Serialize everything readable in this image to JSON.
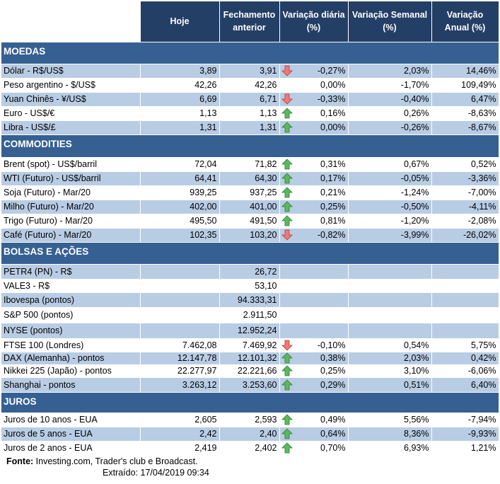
{
  "header": {
    "hoje": "Hoje",
    "fechamento": "Fechamento anterior",
    "var_diaria": "Variação diária (%)",
    "var_semanal": "Variação Semanal (%)",
    "var_anual": "Variação Anual (%)"
  },
  "colors": {
    "header": "#243f66",
    "section": "#366092",
    "stripe": "#b8cce4",
    "up": "#4ea84e",
    "down": "#e06666"
  },
  "sections": [
    {
      "title": "MOEDAS",
      "rows": [
        {
          "label": "Dólar - R$/US$",
          "hoje": "3,89",
          "fech": "3,91",
          "arrow": "down",
          "d": "-0,27%",
          "s": "2,03%",
          "a": "14,46%"
        },
        {
          "label": "Peso argentino - $/US$",
          "hoje": "42,26",
          "fech": "42,26",
          "arrow": "",
          "d": "0,00%",
          "s": "-1,70%",
          "a": "109,49%"
        },
        {
          "label": "Yuan Chinês - ¥/US$",
          "hoje": "6,69",
          "fech": "6,71",
          "arrow": "down",
          "d": "-0,33%",
          "s": "-0,40%",
          "a": "6,47%"
        },
        {
          "label": "Euro - US$/€",
          "hoje": "1,13",
          "fech": "1,13",
          "arrow": "up",
          "d": "0,16%",
          "s": "0,26%",
          "a": "-8,63%"
        },
        {
          "label": "Libra - US$/£",
          "hoje": "1,31",
          "fech": "1,31",
          "arrow": "up",
          "d": "0,00%",
          "s": "-0,26%",
          "a": "-8,67%"
        }
      ]
    },
    {
      "title": "COMMODITIES",
      "rows": [
        {
          "label": "Brent (spot) - US$/barril",
          "hoje": "72,04",
          "fech": "71,82",
          "arrow": "up",
          "d": "0,31%",
          "s": "0,67%",
          "a": "0,52%"
        },
        {
          "label": "WTI (Futuro) - US$/barril",
          "hoje": "64,41",
          "fech": "64,30",
          "arrow": "up",
          "d": "0,17%",
          "s": "-0,05%",
          "a": "-3,36%"
        },
        {
          "label": "Soja (Futuro) - Mar/20",
          "hoje": "939,25",
          "fech": "937,25",
          "arrow": "up",
          "d": "0,21%",
          "s": "-1,24%",
          "a": "-7,00%"
        },
        {
          "label": "Milho (Futuro) - Mar/20",
          "hoje": "402,00",
          "fech": "401,00",
          "arrow": "up",
          "d": "0,25%",
          "s": "-0,50%",
          "a": "-4,11%"
        },
        {
          "label": "Trigo (Futuro) - Mar/20",
          "hoje": "495,50",
          "fech": "491,50",
          "arrow": "up",
          "d": "0,81%",
          "s": "-1,20%",
          "a": "-2,08%"
        },
        {
          "label": "Café (Futuro) - Mar/20",
          "hoje": "102,35",
          "fech": "103,20",
          "arrow": "down",
          "d": "-0,82%",
          "s": "-3,99%",
          "a": "-26,02%"
        }
      ]
    },
    {
      "title": "BOLSAS E AÇÕES",
      "rows": [
        {
          "label": "PETR4 (PN) - R$",
          "hoje": "",
          "fech": "26,72",
          "arrow": "",
          "d": "",
          "s": "",
          "a": ""
        },
        {
          "label": "VALE3 - R$",
          "hoje": "",
          "fech": "53,10",
          "arrow": "",
          "d": "",
          "s": "",
          "a": ""
        },
        {
          "label": "Ibovespa (pontos)",
          "hoje": "",
          "fech": "94.333,31",
          "arrow": "",
          "d": "",
          "s": "",
          "a": ""
        },
        {
          "label": "S&P 500 (pontos)",
          "hoje": "",
          "fech": "2.911,50",
          "arrow": "",
          "d": "",
          "s": "",
          "a": ""
        },
        {
          "label": "NYSE (pontos)",
          "hoje": "",
          "fech": "12.952,24",
          "arrow": "",
          "d": "",
          "s": "",
          "a": ""
        },
        {
          "label": "FTSE 100 (Londres)",
          "hoje": "7.462,08",
          "fech": "7.469,92",
          "arrow": "down",
          "d": "-0,10%",
          "s": "0,54%",
          "a": "5,75%"
        },
        {
          "label": "DAX (Alemanha) - pontos",
          "hoje": "12.147,78",
          "fech": "12.101,32",
          "arrow": "up",
          "d": "0,38%",
          "s": "2,03%",
          "a": "0,42%"
        },
        {
          "label": "Nikkei 225 (Japão) - pontos",
          "hoje": "22.277,97",
          "fech": "22.221,66",
          "arrow": "up",
          "d": "0,25%",
          "s": "3,10%",
          "a": "-6,06%"
        },
        {
          "label": "Shanghai - pontos",
          "hoje": "3.263,12",
          "fech": "3.253,60",
          "arrow": "up",
          "d": "0,29%",
          "s": "0,51%",
          "a": "6,40%"
        }
      ]
    },
    {
      "title": "JUROS",
      "rows": [
        {
          "label": "Juros de 10 anos - EUA",
          "hoje": "2,605",
          "fech": "2,593",
          "arrow": "up",
          "d": "0,49%",
          "s": "5,56%",
          "a": "-7,94%"
        },
        {
          "label": "Juros de 5 anos - EUA",
          "hoje": "2,42",
          "fech": "2,40",
          "arrow": "up",
          "d": "0,64%",
          "s": "8,36%",
          "a": "-9,93%"
        },
        {
          "label": "Juros de 2 anos - EUA",
          "hoje": "2,419",
          "fech": "2,402",
          "arrow": "up",
          "d": "0,70%",
          "s": "6,93%",
          "a": "1,21%"
        }
      ]
    }
  ],
  "footer": {
    "fonte_label": "Fonte:",
    "fonte_text": " Investing.com, Trader's club e Broadcast.",
    "extraido": "Extraído:  17/04/2019 09:34"
  }
}
